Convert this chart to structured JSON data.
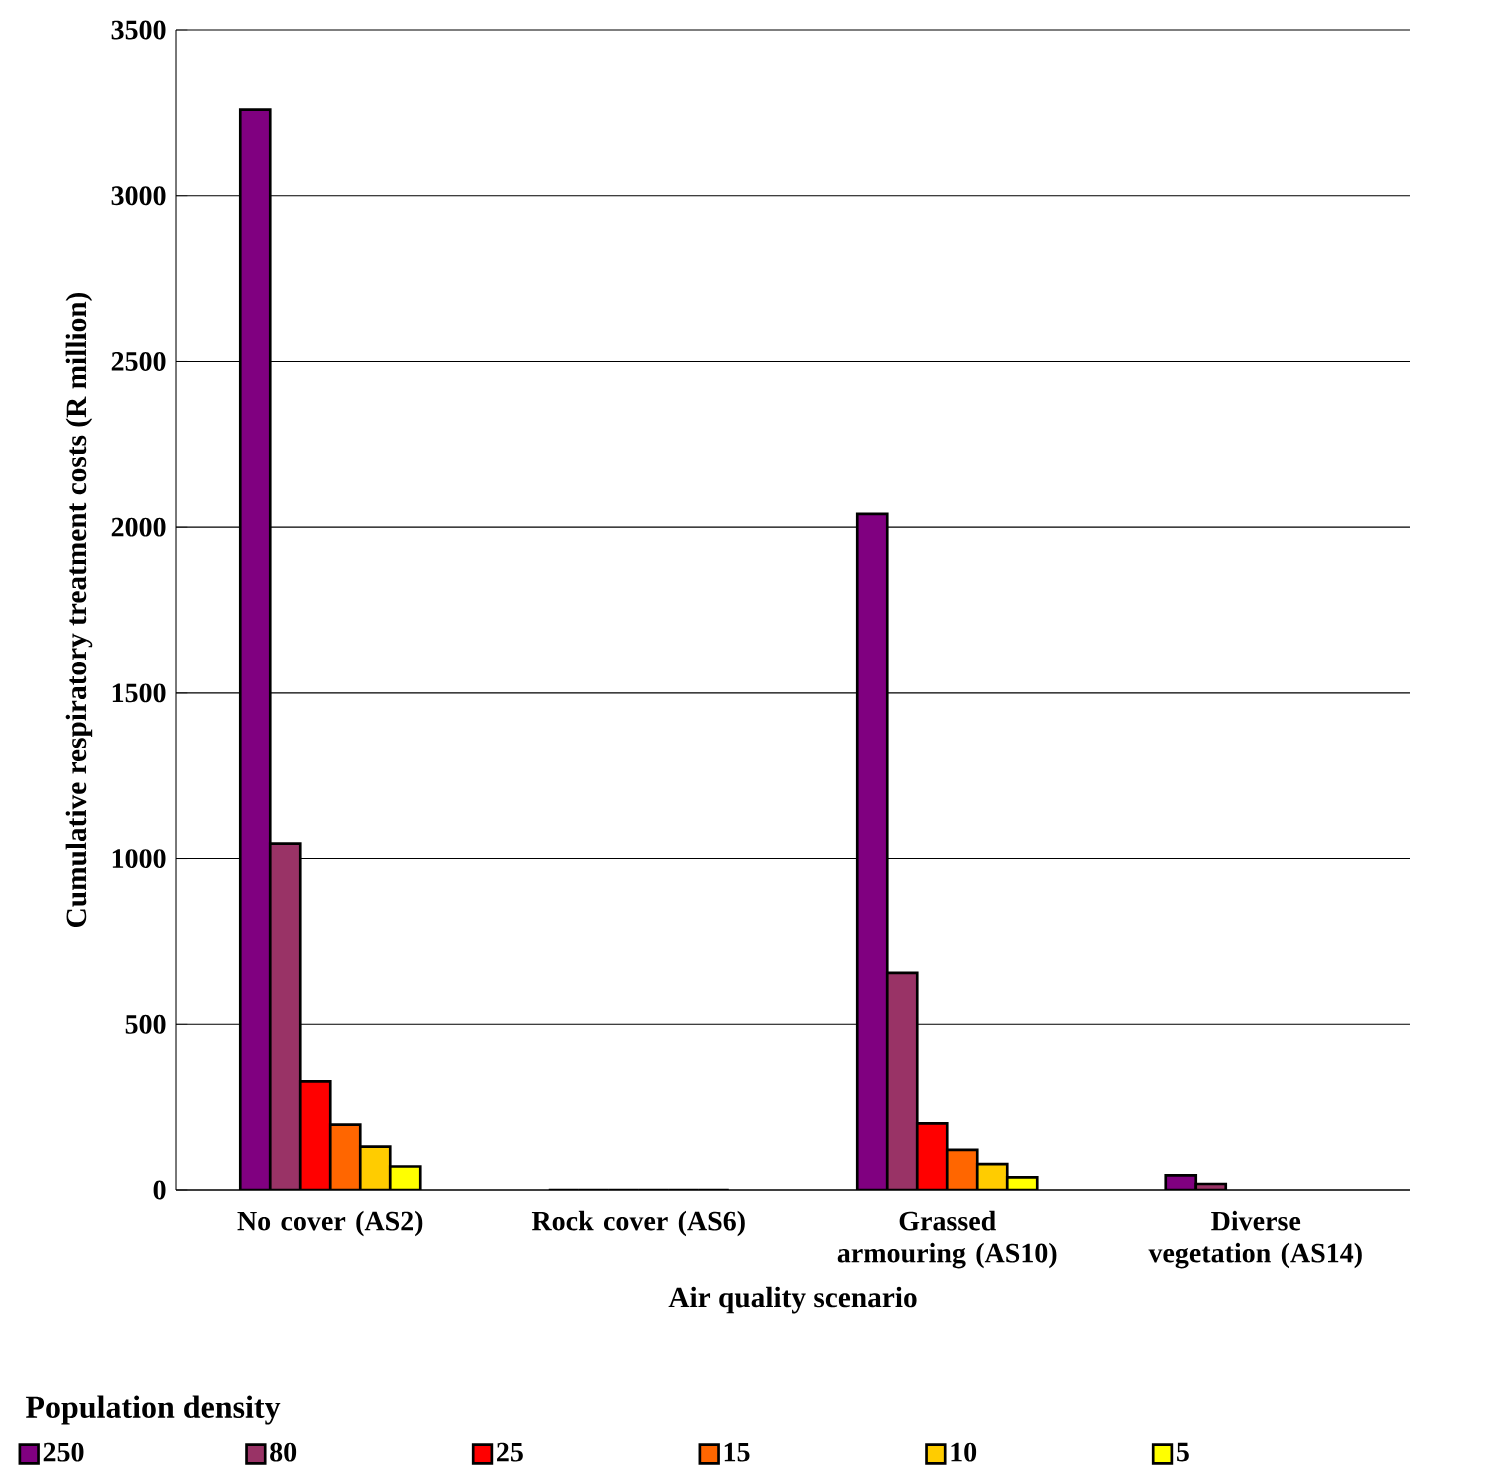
{
  "chart_data": {
    "type": "bar",
    "xlabel": "Air quality scenario",
    "ylabel": "Cumulative respiratory treatment costs (R million)",
    "legend_title": "Population density",
    "categories": [
      "No cover (AS2)",
      "Rock cover (AS6)",
      "Grassed armouring (AS10)",
      "Diverse vegetation (AS14)"
    ],
    "series": [
      {
        "name": "250",
        "color": "#800080",
        "values": [
          3260,
          0,
          2040,
          44
        ]
      },
      {
        "name": "80",
        "color": "#993366",
        "values": [
          1045,
          0,
          655,
          18
        ]
      },
      {
        "name": "25",
        "color": "#ff0000",
        "values": [
          328,
          0,
          201,
          null
        ]
      },
      {
        "name": "15",
        "color": "#ff6600",
        "values": [
          197,
          0,
          121,
          null
        ]
      },
      {
        "name": "10",
        "color": "#ffcc00",
        "values": [
          131,
          0,
          78,
          null
        ]
      },
      {
        "name": "5",
        "color": "#ffff00",
        "values": [
          71,
          0,
          38,
          null
        ]
      }
    ],
    "ylim": [
      0,
      3500
    ],
    "yticks": [
      0,
      500,
      1000,
      1500,
      2000,
      2500,
      3000,
      3500
    ],
    "grid": "y",
    "legend": "bottom"
  }
}
